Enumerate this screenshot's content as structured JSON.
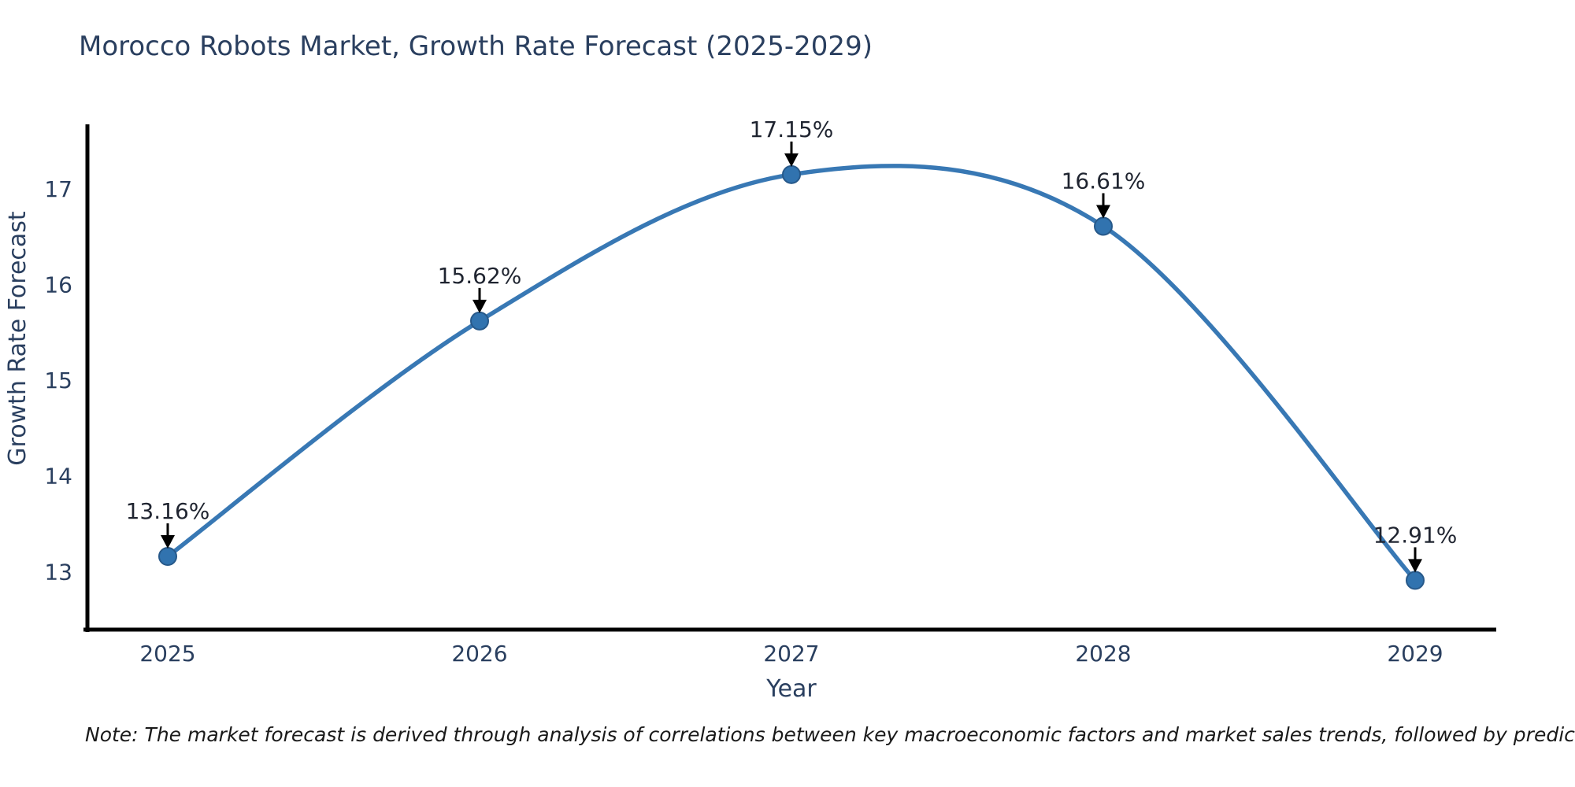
{
  "chart": {
    "title": "Morocco Robots Market, Growth Rate Forecast (2025-2029)",
    "note": "Note: The market forecast is derived through analysis of correlations between key macroeconomic factors and market sales trends, followed by predictive modeling to project future sales"
  },
  "chart_data": {
    "type": "line",
    "title": "Morocco Robots Market, Growth Rate Forecast (2025-2029)",
    "xlabel": "Year",
    "ylabel": "Growth Rate Forecast",
    "categories": [
      "2025",
      "2026",
      "2027",
      "2028",
      "2029"
    ],
    "series": [
      {
        "name": "Growth Rate Forecast",
        "values": [
          13.16,
          15.62,
          17.15,
          16.61,
          12.91
        ]
      }
    ],
    "point_labels": [
      "13.16%",
      "15.62%",
      "17.15%",
      "16.61%",
      "12.91%"
    ],
    "yticks": [
      13,
      14,
      15,
      16,
      17
    ],
    "ylim": [
      12.4,
      17.8
    ],
    "grid": false,
    "legend": "none",
    "smooth": true,
    "annotation_arrows": true,
    "colors": {
      "line": "#3878b4",
      "marker": "#3173af",
      "marker_edge": "#27598a",
      "axis": "#000000",
      "text": "#2a3f5f",
      "annotation": "#1f2430",
      "arrow": "#000000"
    }
  }
}
